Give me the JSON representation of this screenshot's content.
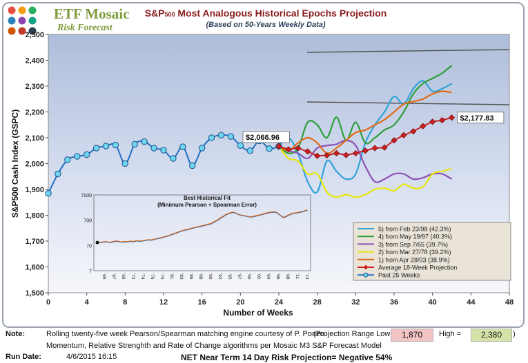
{
  "brand": {
    "name": "ETF Mosaic",
    "subtitle": "Risk Forecast",
    "logo_colors": [
      "#e84c3d",
      "#f39c12",
      "#27ae60",
      "#2980b9",
      "#8e44ad",
      "#16a085",
      "#d35400",
      "#c0392b",
      "#2c3e50"
    ]
  },
  "header": {
    "title_pre": "S&P",
    "title_sub": "500",
    "title_post": " Most Analogous Historical Epochs Projection",
    "subtitle": "(Based on 50-Years Weekly Data)"
  },
  "chart_data": {
    "type": "line",
    "xlabel": "Number of Weeks",
    "ylabel": "S&P500 Cash Index  (GSPC)",
    "xlim": [
      0,
      48
    ],
    "ylim": [
      1500,
      2500
    ],
    "xticks": [
      "0",
      "4",
      "8",
      "12",
      "16",
      "20",
      "24",
      "28",
      "32",
      "36",
      "40",
      "44",
      "48"
    ],
    "yticks": [
      "1,500",
      "1,600",
      "1,700",
      "1,800",
      "1,900",
      "2,000",
      "2,100",
      "2,200",
      "2,300",
      "2,400",
      "2,500"
    ],
    "past": {
      "name": "Past 25 Weeks",
      "color": "#1f6fc4",
      "x": [
        0,
        1,
        2,
        3,
        4,
        5,
        6,
        7,
        8,
        9,
        10,
        11,
        12,
        13,
        14,
        15,
        16,
        17,
        18,
        19,
        20,
        21,
        22,
        23,
        24
      ],
      "y": [
        1885,
        1960,
        2015,
        2028,
        2035,
        2060,
        2068,
        2072,
        2000,
        2075,
        2085,
        2060,
        2052,
        2020,
        2065,
        1992,
        2060,
        2100,
        2110,
        2105,
        2070,
        2050,
        2088,
        2058,
        2067
      ]
    },
    "projection": {
      "name": "Average 18-Week Projection",
      "color": "#cc1f1f",
      "x": [
        24,
        25,
        26,
        27,
        28,
        29,
        30,
        31,
        32,
        33,
        34,
        35,
        36,
        37,
        38,
        39,
        40,
        41,
        42
      ],
      "y": [
        2067,
        2055,
        2060,
        2047,
        2030,
        2032,
        2040,
        2033,
        2040,
        2050,
        2060,
        2062,
        2090,
        2110,
        2125,
        2145,
        2162,
        2168,
        2178
      ]
    },
    "series": [
      {
        "name": "5)  from Feb 23/98 (42.3%)",
        "color": "#2fa3d9",
        "x": [
          24,
          25,
          26,
          27,
          28,
          29,
          30,
          31,
          32,
          33,
          34,
          35,
          36,
          37,
          38,
          39,
          40,
          41,
          42
        ],
        "y": [
          2067,
          2100,
          2040,
          1930,
          1890,
          2010,
          1970,
          1940,
          1960,
          2080,
          2150,
          2200,
          2260,
          2230,
          2290,
          2320,
          2280,
          2290,
          2310
        ]
      },
      {
        "name": "4)  from May 19/97 (40.3%)",
        "color": "#2e9e3b",
        "x": [
          24,
          25,
          26,
          27,
          28,
          29,
          30,
          31,
          32,
          33,
          34,
          35,
          36,
          37,
          38,
          39,
          40,
          41,
          42
        ],
        "y": [
          2067,
          2040,
          2060,
          2160,
          2150,
          2100,
          2180,
          2090,
          2160,
          2080,
          2100,
          2130,
          2150,
          2200,
          2270,
          2310,
          2330,
          2350,
          2380
        ]
      },
      {
        "name": "3)  from Sep 7/65 (39.7%)",
        "color": "#8a50b6",
        "x": [
          24,
          25,
          26,
          27,
          28,
          29,
          30,
          31,
          32,
          33,
          34,
          35,
          36,
          37,
          38,
          39,
          40,
          41,
          42
        ],
        "y": [
          2067,
          2050,
          2040,
          2020,
          2060,
          2070,
          2075,
          2090,
          2070,
          1990,
          1930,
          1940,
          1960,
          1960,
          1940,
          1945,
          1960,
          1960,
          1940
        ]
      },
      {
        "name": "2)  from Mar 27/78 (39.2%)",
        "color": "#e6e60a",
        "x": [
          24,
          25,
          26,
          27,
          28,
          29,
          30,
          31,
          32,
          33,
          34,
          35,
          36,
          37,
          38,
          39,
          40,
          41,
          42
        ],
        "y": [
          2067,
          2020,
          2010,
          1960,
          1960,
          1890,
          1870,
          1880,
          1870,
          1880,
          1900,
          1905,
          1895,
          1920,
          1905,
          1910,
          1960,
          1970,
          1980
        ]
      },
      {
        "name": "1)  from Apr 28/03 (38.9%)",
        "color": "#e06b1a",
        "x": [
          24,
          25,
          26,
          27,
          28,
          29,
          30,
          31,
          32,
          33,
          34,
          35,
          36,
          37,
          38,
          39,
          40,
          41,
          42
        ],
        "y": [
          2067,
          2050,
          2080,
          2100,
          2080,
          2040,
          2060,
          2090,
          2120,
          2130,
          2150,
          2170,
          2200,
          2230,
          2240,
          2250,
          2270,
          2280,
          2275
        ]
      }
    ],
    "annotations": {
      "start_value": "$2,066.96",
      "end_value": "$2,177.83"
    },
    "inset": {
      "title": "Best Historical Fit",
      "subtitle": "(Minimum Pearson + Spearman Error)",
      "yticks": [
        "7000",
        "700",
        "70",
        "7"
      ],
      "xticks": [
        "'65",
        "'67",
        "'69",
        "'72",
        "'74",
        "'76",
        "'79",
        "'81",
        "'83",
        "'85",
        "'88",
        "'90",
        "'92",
        "'95",
        "'97",
        "'99",
        "'02",
        "'04",
        "'06",
        "'08",
        "'11",
        "'13"
      ],
      "values": [
        91,
        93,
        96,
        100,
        92,
        97,
        105,
        102,
        95,
        100,
        98,
        104,
        99,
        108,
        103,
        107,
        112,
        118,
        115,
        125,
        132,
        140,
        150,
        162,
        175,
        195,
        215,
        238,
        260,
        285,
        300,
        322,
        350,
        372,
        395,
        420,
        450,
        480,
        520,
        610,
        700,
        850,
        1000,
        1200,
        1320,
        1450,
        1380,
        1200,
        1100,
        1050,
        1000,
        940,
        980,
        1050,
        1120,
        1200,
        1300,
        1400,
        1450,
        1500,
        1380,
        1100,
        900,
        1000,
        1150,
        1300,
        1350,
        1420,
        1500,
        1600,
        1800
      ]
    }
  },
  "legend_visible": true,
  "footer": {
    "note_label": "Note:",
    "note_line1": "Rolling twenty-five week Pearson/Spearman matching engine courtesy of P. Ponzo.",
    "note_line2": "Momentum, Relative Strenghth and Rate of Change algorithms per Mosaic M3 S&P Forecast Model",
    "range_label": "(Projection Range Low =",
    "range_low": "1,870",
    "high_label": "High =",
    "range_high": "2,380",
    "range_close": ")",
    "run_label": "Run Date:",
    "run_date": "4/6/2015 16:15",
    "risk_text": "NET Near Term 14 Day Risk Projection=  Negative 54%",
    "low_color": "#f2c4c4",
    "high_color": "#d6e3a8"
  }
}
